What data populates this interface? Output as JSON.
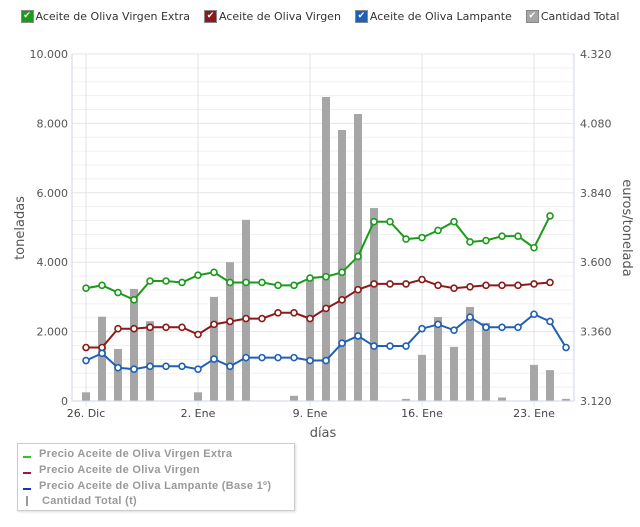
{
  "top_legend": {
    "items": [
      {
        "label": "Aceite de Oliva Virgen Extra",
        "color": "#1c9a1c"
      },
      {
        "label": "Aceite de Oliva Virgen",
        "color": "#8b1a1a"
      },
      {
        "label": "Aceite de Oliva Lampante",
        "color": "#1f5fb5"
      },
      {
        "label": "Cantidad Total",
        "color": "#a6a6a6"
      }
    ]
  },
  "bottom_legend": {
    "items": [
      {
        "label": "Precio Aceite de Oliva Virgen Extra",
        "color": "#22cc22"
      },
      {
        "label": "Precio Aceite de Oliva Virgen",
        "color": "#aa1144"
      },
      {
        "label": "Precio Aceite de Oliva Lampante (Base 1º)",
        "color": "#1133cc"
      },
      {
        "label": "Cantidad Total (t)",
        "color": "#999999"
      }
    ]
  },
  "chart_data": {
    "type": "bar+line",
    "title": "",
    "xlabel": "días",
    "ylabel": "toneladas",
    "ylabel_right": "euros/tonelada",
    "ylim": [
      0,
      10000
    ],
    "ylim_right": [
      3120,
      4320
    ],
    "yticks": [
      "0",
      "2.000",
      "4.000",
      "6.000",
      "8.000",
      "10.000"
    ],
    "yticks_right": [
      "3.120",
      "3.360",
      "3.600",
      "3.840",
      "4.080",
      "4.320"
    ],
    "xticks": [
      "26. Dic",
      "2. Ene",
      "9. Ene",
      "16. Ene",
      "23. Ene"
    ],
    "categories": [
      "26 Dic",
      "27 Dic",
      "28 Dic",
      "29 Dic",
      "30 Dic",
      "31 Dic",
      "1 Ene",
      "2 Ene",
      "3 Ene",
      "4 Ene",
      "5 Ene",
      "6 Ene",
      "7 Ene",
      "8 Ene",
      "9 Ene",
      "10 Ene",
      "11 Ene",
      "12 Ene",
      "13 Ene",
      "14 Ene",
      "15 Ene",
      "16 Ene",
      "17 Ene",
      "18 Ene",
      "19 Ene",
      "20 Ene",
      "21 Ene",
      "22 Ene",
      "23 Ene",
      "24 Ene",
      "25 Ene"
    ],
    "series": [
      {
        "name": "Cantidad Total",
        "axis": "left",
        "type": "bar",
        "color": "#a6a6a6",
        "values": [
          250,
          2430,
          1500,
          3230,
          2300,
          null,
          null,
          250,
          3000,
          4000,
          5220,
          null,
          null,
          150,
          3500,
          8760,
          7810,
          8270,
          5560,
          null,
          60,
          1330,
          2420,
          1560,
          2710,
          2250,
          100,
          null,
          1040,
          890,
          60
        ]
      },
      {
        "name": "Aceite de Oliva Virgen Extra",
        "axis": "right",
        "type": "line",
        "color": "#1c9a1c",
        "values": [
          3510,
          3520,
          3495,
          3470,
          3535,
          3535,
          3530,
          3555,
          3565,
          3530,
          3530,
          3530,
          3520,
          3520,
          3545,
          3550,
          3565,
          3620,
          3740,
          3740,
          3680,
          3685,
          3710,
          3740,
          3670,
          3675,
          3690,
          3690,
          3650,
          3760,
          null
        ]
      },
      {
        "name": "Aceite de Oliva Virgen",
        "axis": "right",
        "type": "line",
        "color": "#8b1a1a",
        "values": [
          3305,
          3305,
          3370,
          3370,
          3375,
          3375,
          3375,
          3350,
          3385,
          3395,
          3405,
          3405,
          3425,
          3425,
          3405,
          3440,
          3470,
          3505,
          3525,
          3525,
          3525,
          3540,
          3520,
          3510,
          3515,
          3520,
          3520,
          3520,
          3525,
          3530,
          null
        ]
      },
      {
        "name": "Aceite de Oliva Lampante",
        "axis": "right",
        "type": "line",
        "color": "#1f5fb5",
        "values": [
          3260,
          3285,
          3235,
          3230,
          3240,
          3240,
          3240,
          3230,
          3265,
          3240,
          3270,
          3270,
          3270,
          3270,
          3260,
          3260,
          3320,
          3345,
          3310,
          3310,
          3310,
          3370,
          3385,
          3365,
          3410,
          3375,
          3375,
          3375,
          3420,
          3395,
          3305
        ]
      }
    ]
  }
}
